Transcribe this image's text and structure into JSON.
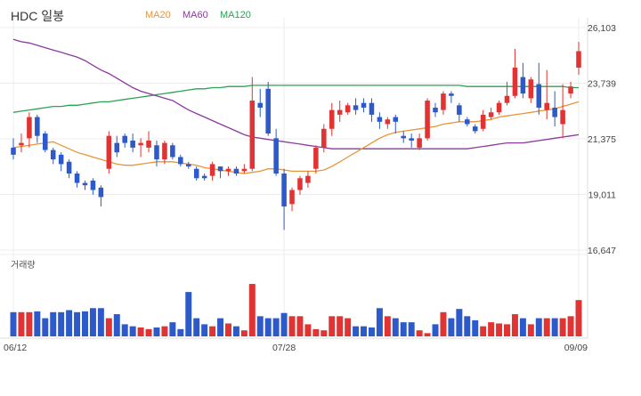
{
  "title": "HDC 일봉",
  "legend": [
    {
      "label": "MA20",
      "color": "#e8953a"
    },
    {
      "label": "MA60",
      "color": "#8a3a9c"
    },
    {
      "label": "MA120",
      "color": "#2aa353"
    }
  ],
  "volume_label": "거래량",
  "colors": {
    "up": "#e03333",
    "down": "#2d5ac8",
    "grid": "#ececec",
    "axis": "#dddddd",
    "text": "#444444"
  },
  "chart_data": {
    "type": "candlestick",
    "title": "HDC 일봉",
    "y_ticks": [
      "26,103",
      "23,739",
      "21,375",
      "19,011",
      "16,647"
    ],
    "y_tick_values": [
      26103,
      23739,
      21375,
      19011,
      16647
    ],
    "ylim": [
      16647,
      26103
    ],
    "x_tick_labels": [
      {
        "index": 0,
        "label": "06/12"
      },
      {
        "index": 34,
        "label": "07/28"
      },
      {
        "index": 71,
        "label": "09/09"
      }
    ],
    "n_days": 72,
    "candles": [
      [
        21000,
        20700,
        21400,
        20500
      ],
      [
        21100,
        21200,
        21600,
        20800
      ],
      [
        21400,
        22300,
        22500,
        21000
      ],
      [
        22300,
        21500,
        22400,
        21200
      ],
      [
        21600,
        20900,
        21700,
        20800
      ],
      [
        20900,
        20500,
        21000,
        20300
      ],
      [
        20700,
        20300,
        20800,
        20000
      ],
      [
        20400,
        19900,
        20500,
        19700
      ],
      [
        19900,
        19500,
        20000,
        19300
      ],
      [
        19500,
        19400,
        19600,
        19200
      ],
      [
        19600,
        19200,
        19700,
        19000
      ],
      [
        19300,
        18900,
        19400,
        18500
      ],
      [
        20100,
        21500,
        21700,
        19900
      ],
      [
        21200,
        20800,
        21500,
        20600
      ],
      [
        21500,
        21200,
        21600,
        21000
      ],
      [
        21300,
        21000,
        21600,
        20800
      ],
      [
        21100,
        21200,
        21400,
        20600
      ],
      [
        21000,
        21300,
        21700,
        20800
      ],
      [
        21100,
        20500,
        21300,
        20200
      ],
      [
        20500,
        21200,
        21300,
        20300
      ],
      [
        21100,
        20600,
        21200,
        20500
      ],
      [
        20600,
        20300,
        20700,
        20200
      ],
      [
        20300,
        20200,
        20400,
        20100
      ],
      [
        20100,
        19700,
        20200,
        19600
      ],
      [
        19800,
        19700,
        19900,
        19600
      ],
      [
        19800,
        20300,
        20400,
        19600
      ],
      [
        20200,
        20000,
        20200,
        19700
      ],
      [
        20000,
        20100,
        20200,
        19800
      ],
      [
        20100,
        19900,
        20200,
        19800
      ],
      [
        20000,
        20100,
        20300,
        19900
      ],
      [
        20100,
        23000,
        24000,
        20000
      ],
      [
        22900,
        22700,
        23500,
        22300
      ],
      [
        23500,
        21600,
        23800,
        21500
      ],
      [
        21400,
        19900,
        21800,
        19800
      ],
      [
        19900,
        18500,
        20100,
        17500
      ],
      [
        18600,
        19200,
        19300,
        18300
      ],
      [
        19200,
        19700,
        19800,
        19000
      ],
      [
        19500,
        19800,
        20000,
        19300
      ],
      [
        20100,
        21000,
        21100,
        19900
      ],
      [
        21000,
        21800,
        22000,
        20800
      ],
      [
        21800,
        22600,
        22900,
        21500
      ],
      [
        22400,
        22600,
        23000,
        22100
      ],
      [
        22500,
        22800,
        22900,
        22400
      ],
      [
        22800,
        22600,
        23100,
        22400
      ],
      [
        22900,
        22700,
        23100,
        22500
      ],
      [
        22900,
        22400,
        23100,
        22100
      ],
      [
        22300,
        22100,
        22500,
        21800
      ],
      [
        22000,
        22200,
        22300,
        21800
      ],
      [
        22300,
        22100,
        22400,
        21600
      ],
      [
        21500,
        21400,
        21700,
        21200
      ],
      [
        21400,
        21300,
        21600,
        21000
      ],
      [
        21000,
        21400,
        21600,
        20900
      ],
      [
        21400,
        23000,
        23100,
        21300
      ],
      [
        22700,
        22500,
        22900,
        22300
      ],
      [
        22600,
        23300,
        23400,
        22400
      ],
      [
        23300,
        23200,
        23400,
        22900
      ],
      [
        22800,
        22400,
        22900,
        22100
      ],
      [
        22200,
        22000,
        22300,
        21900
      ],
      [
        21900,
        21700,
        22000,
        21600
      ],
      [
        21800,
        22400,
        22600,
        21700
      ],
      [
        22300,
        22500,
        22700,
        22200
      ],
      [
        22500,
        22900,
        23000,
        22400
      ],
      [
        22900,
        23200,
        23800,
        22800
      ],
      [
        23200,
        24400,
        25200,
        23100
      ],
      [
        24000,
        23300,
        24600,
        23100
      ],
      [
        23100,
        23900,
        24000,
        22900
      ],
      [
        23700,
        22700,
        24600,
        22400
      ],
      [
        22600,
        22900,
        24300,
        22200
      ],
      [
        22700,
        22300,
        23400,
        21900
      ],
      [
        22000,
        22600,
        23700,
        21400
      ],
      [
        23300,
        23600,
        23800,
        23100
      ],
      [
        24400,
        25100,
        25500,
        24100
      ]
    ],
    "volumes": [
      60,
      60,
      60,
      62,
      45,
      60,
      60,
      65,
      60,
      62,
      70,
      70,
      45,
      55,
      30,
      25,
      22,
      18,
      22,
      25,
      35,
      18,
      110,
      45,
      30,
      25,
      45,
      32,
      25,
      15,
      130,
      50,
      45,
      45,
      58,
      50,
      50,
      30,
      18,
      15,
      50,
      50,
      45,
      25,
      25,
      22,
      70,
      50,
      45,
      35,
      35,
      15,
      8,
      30,
      60,
      45,
      68,
      50,
      40,
      25,
      35,
      32,
      30,
      55,
      45,
      30,
      45,
      45,
      45,
      45,
      50,
      90
    ],
    "volume_max": 150,
    "ma20": [
      21000,
      21050,
      21100,
      21150,
      21200,
      21250,
      21100,
      20950,
      20800,
      20700,
      20600,
      20500,
      20400,
      20300,
      20250,
      20250,
      20300,
      20350,
      20400,
      20400,
      20400,
      20350,
      20300,
      20250,
      20150,
      20100,
      20050,
      20000,
      19950,
      19900,
      19950,
      20000,
      20100,
      20100,
      20050,
      20000,
      20000,
      20000,
      20000,
      20050,
      20200,
      20400,
      20600,
      20800,
      21000,
      21200,
      21400,
      21550,
      21650,
      21700,
      21750,
      21800,
      21850,
      21900,
      22000,
      22050,
      22100,
      22100,
      22100,
      22150,
      22200,
      22300,
      22350,
      22400,
      22450,
      22500,
      22550,
      22600,
      22650,
      22750,
      22850,
      22950
    ],
    "ma60": [
      25600,
      25500,
      25450,
      25350,
      25250,
      25150,
      25050,
      24950,
      24850,
      24700,
      24500,
      24300,
      24150,
      23950,
      23750,
      23550,
      23400,
      23300,
      23200,
      23100,
      23000,
      22800,
      22600,
      22450,
      22300,
      22150,
      22000,
      21850,
      21700,
      21550,
      21450,
      21400,
      21350,
      21300,
      21250,
      21200,
      21150,
      21100,
      21050,
      21000,
      20950,
      20950,
      20950,
      20950,
      20950,
      20950,
      20950,
      20950,
      20950,
      20950,
      20950,
      20950,
      20950,
      20950,
      20950,
      20950,
      20950,
      20950,
      21000,
      21050,
      21100,
      21150,
      21200,
      21200,
      21200,
      21250,
      21300,
      21350,
      21400,
      21450,
      21500,
      21550
    ],
    "ma120": [
      22500,
      22550,
      22600,
      22650,
      22700,
      22750,
      22750,
      22800,
      22800,
      22850,
      22900,
      22950,
      22950,
      23000,
      23050,
      23100,
      23150,
      23200,
      23250,
      23300,
      23350,
      23400,
      23450,
      23500,
      23500,
      23550,
      23550,
      23600,
      23600,
      23600,
      23650,
      23650,
      23650,
      23650,
      23650,
      23650,
      23650,
      23650,
      23650,
      23650,
      23650,
      23650,
      23650,
      23650,
      23650,
      23650,
      23650,
      23650,
      23650,
      23650,
      23650,
      23650,
      23650,
      23650,
      23650,
      23650,
      23650,
      23600,
      23600,
      23600,
      23600,
      23600,
      23600,
      23600,
      23600,
      23600,
      23600,
      23600,
      23600,
      23600,
      23550,
      23550
    ]
  }
}
